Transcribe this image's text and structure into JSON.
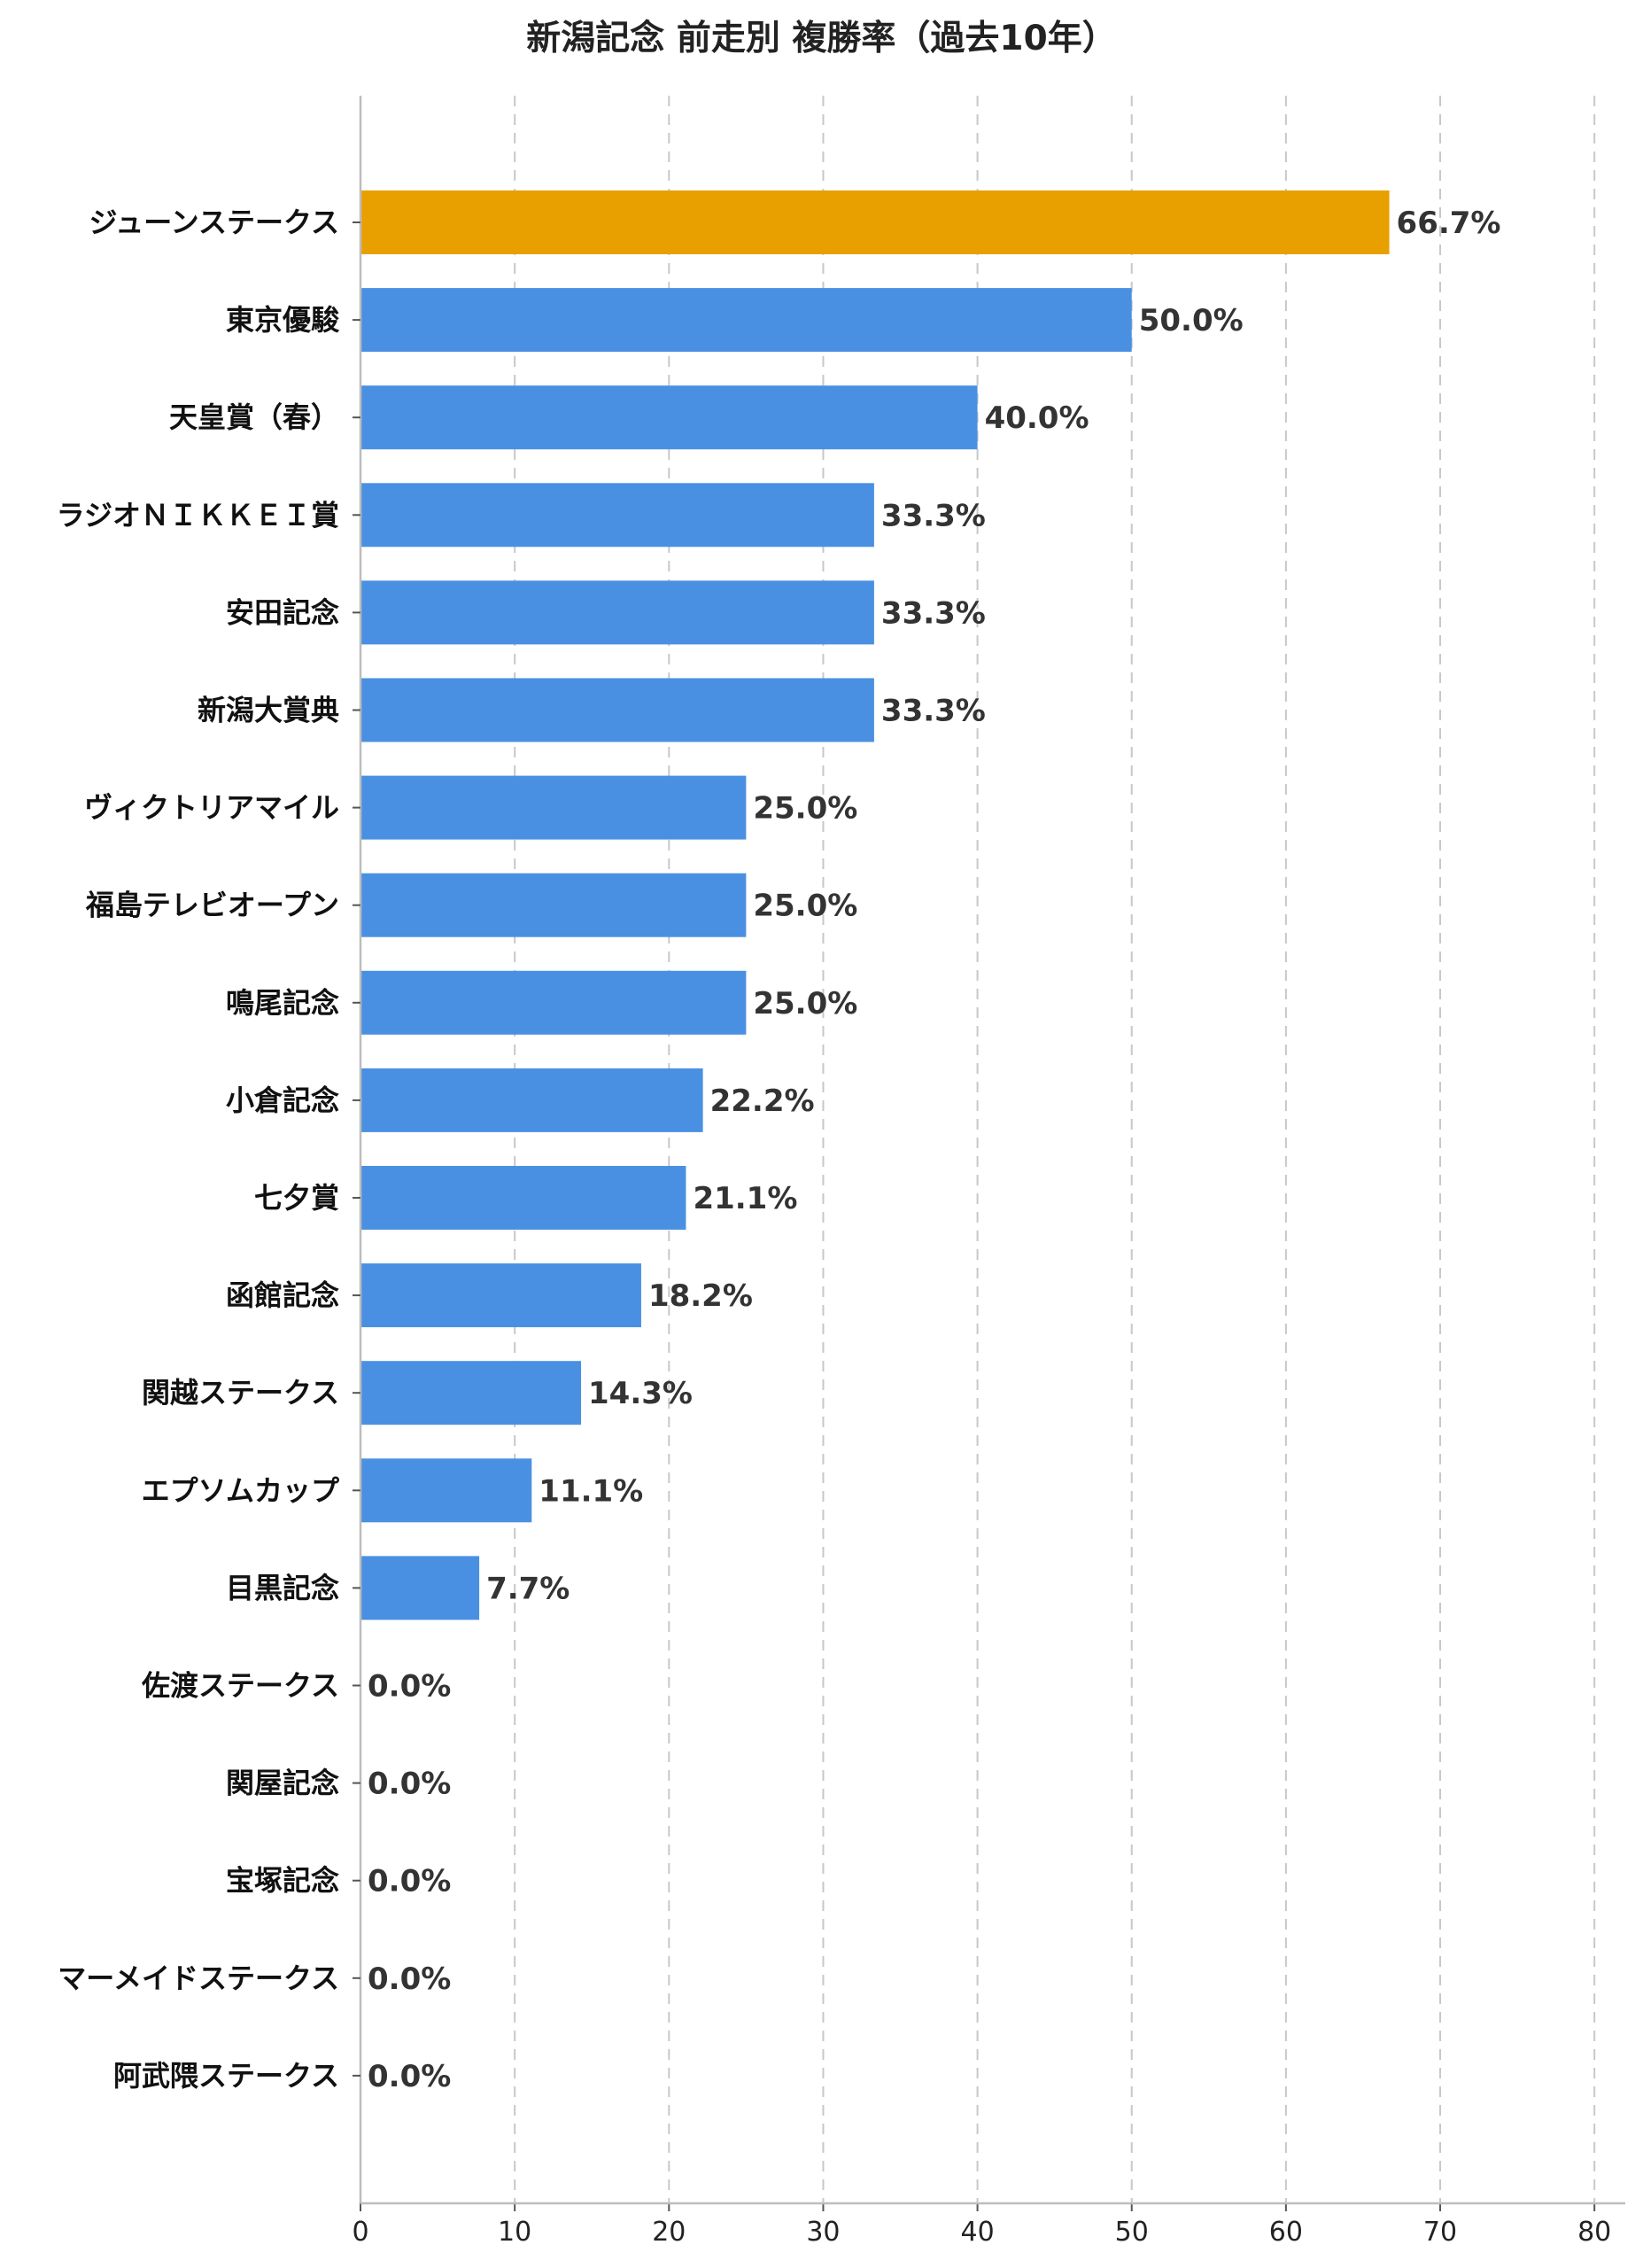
{
  "chart_data": {
    "type": "bar",
    "orientation": "horizontal",
    "title": "新潟記念 前走別 複勝率（過去10年）",
    "categories": [
      "ジューンステークス",
      "東京優駿",
      "天皇賞（春）",
      "ラジオＮＩＫＫＥＩ賞",
      "安田記念",
      "新潟大賞典",
      "ヴィクトリアマイル",
      "福島テレビオープン",
      "鳴尾記念",
      "小倉記念",
      "七夕賞",
      "函館記念",
      "関越ステークス",
      "エプソムカップ",
      "目黒記念",
      "佐渡ステークス",
      "関屋記念",
      "宝塚記念",
      "マーメイドステークス",
      "阿武隈ステークス"
    ],
    "values": [
      66.7,
      50.0,
      40.0,
      33.3,
      33.3,
      33.3,
      25.0,
      25.0,
      25.0,
      22.2,
      21.1,
      18.2,
      14.3,
      11.1,
      7.7,
      0.0,
      0.0,
      0.0,
      0.0,
      0.0
    ],
    "value_labels": [
      "66.7%",
      "50.0%",
      "40.0%",
      "33.3%",
      "33.3%",
      "33.3%",
      "25.0%",
      "25.0%",
      "25.0%",
      "22.2%",
      "21.1%",
      "18.2%",
      "14.3%",
      "11.1%",
      "7.7%",
      "0.0%",
      "0.0%",
      "0.0%",
      "0.0%",
      "0.0%"
    ],
    "highlight_index": 0,
    "xlim": [
      0,
      82
    ],
    "xticks": [
      0,
      10,
      20,
      30,
      40,
      50,
      60,
      70,
      80
    ],
    "grid": "x-dashed",
    "colors": {
      "bar": "#4a90e2",
      "highlight": "#e8a000"
    }
  }
}
